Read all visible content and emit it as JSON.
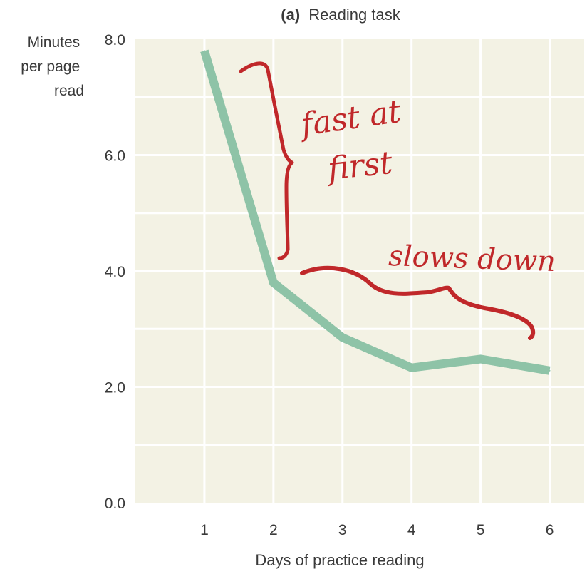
{
  "chart_data": {
    "type": "line",
    "title_prefix": "(a)",
    "title": "Reading task",
    "xlabel": "Days of practice reading",
    "ylabel_lines": [
      "Minutes",
      "per page",
      "read"
    ],
    "x": [
      1,
      2,
      3,
      4,
      5,
      6
    ],
    "xticks": [
      "1",
      "2",
      "3",
      "4",
      "5",
      "6"
    ],
    "yticks": [
      "0.0",
      "2.0",
      "4.0",
      "6.0",
      "8.0"
    ],
    "ylim": [
      0,
      8
    ],
    "xlim": [
      0,
      6.5
    ],
    "grid": true,
    "series": [
      {
        "values": [
          7.8,
          3.8,
          2.85,
          2.33,
          2.48,
          2.28
        ]
      }
    ],
    "annotations": {
      "fast": [
        "fast at",
        "first"
      ],
      "slow": "slows down"
    },
    "colors": {
      "plot_bg": "#f3f2e4",
      "grid": "#ffffff",
      "line": "#8ec3a7",
      "annotation": "#c0282a",
      "text": "#3a3a3a"
    }
  }
}
